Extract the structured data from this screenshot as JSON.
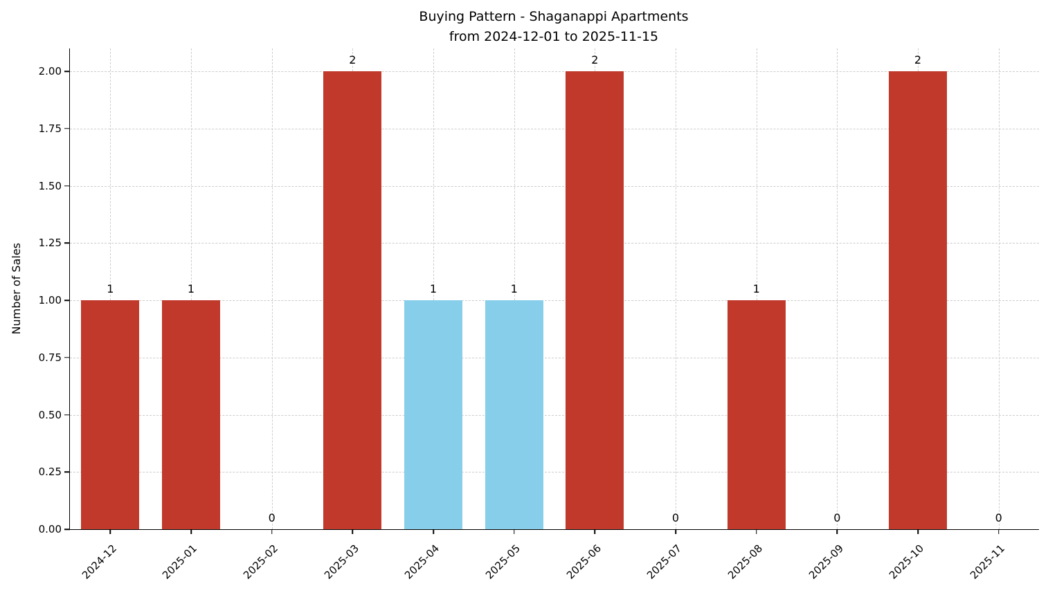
{
  "chart_data": {
    "type": "bar",
    "title": "Buying Pattern - Shaganappi Apartments\nfrom 2024-12-01 to 2025-11-15",
    "xlabel": "",
    "ylabel": "Number of Sales",
    "categories": [
      "2024-12",
      "2025-01",
      "2025-02",
      "2025-03",
      "2025-04",
      "2025-05",
      "2025-06",
      "2025-07",
      "2025-08",
      "2025-09",
      "2025-10",
      "2025-11"
    ],
    "values": [
      1,
      1,
      0,
      2,
      1,
      1,
      2,
      0,
      1,
      0,
      2,
      0
    ],
    "bar_colors": [
      "#c0392b",
      "#c0392b",
      "#c0392b",
      "#c0392b",
      "#87CEEB",
      "#87CEEB",
      "#c0392b",
      "#c0392b",
      "#c0392b",
      "#c0392b",
      "#c0392b",
      "#c0392b"
    ],
    "default_bar_color": "#c0392b",
    "highlight_bar_color": "#87CEEB",
    "grid_color": "#cccccc",
    "ylim": [
      0,
      2.1
    ],
    "yticks": [
      0,
      0.25,
      0.5,
      0.75,
      1,
      1.25,
      1.5,
      1.75,
      2
    ],
    "ytick_labels": [
      "0.00",
      "0.25",
      "0.50",
      "0.75",
      "1.00",
      "1.25",
      "1.50",
      "1.75",
      "2.00"
    ],
    "grid": true,
    "legend": "none"
  }
}
